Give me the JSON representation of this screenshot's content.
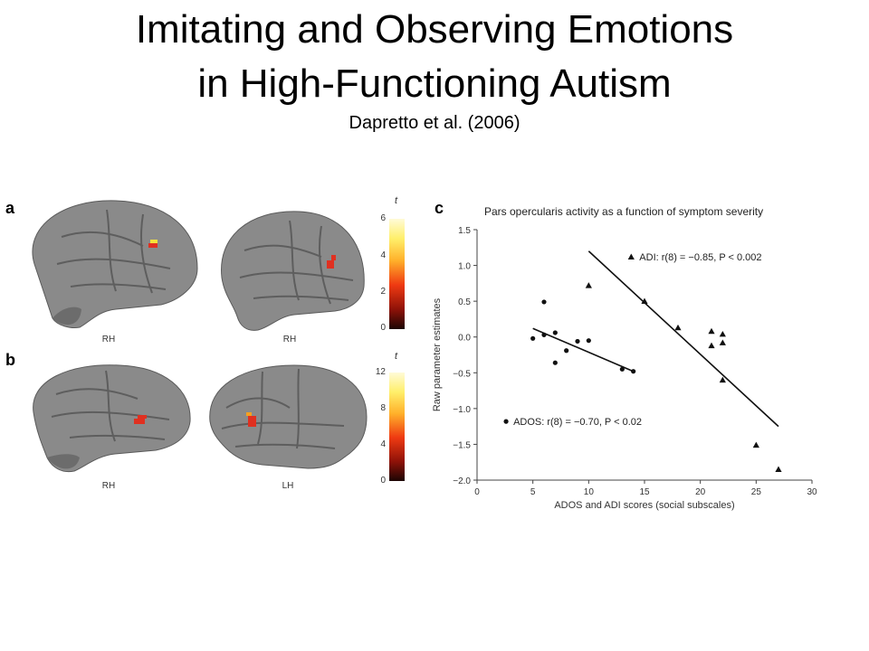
{
  "slide": {
    "title_line1": "Imitating and Observing Emotions",
    "title_line2": "in High-Functioning Autism",
    "subtitle": "Dapretto et al. (2006)"
  },
  "panel_a": {
    "letter": "a",
    "brain_labels": [
      "RH",
      "RH"
    ],
    "colorbar_label": "t",
    "colorbar_ticks": [
      "6",
      "4",
      "2",
      "0"
    ]
  },
  "panel_b": {
    "letter": "b",
    "brain_labels": [
      "RH",
      "LH"
    ],
    "colorbar_label": "t",
    "colorbar_ticks": [
      "12",
      "8",
      "4",
      "0"
    ]
  },
  "panel_c": {
    "letter": "c"
  },
  "colors": {
    "brain_gray": "#8a8a8a",
    "activation_red": "#e03020",
    "activation_yellow": "#f5e23a"
  },
  "chart_data": {
    "type": "scatter",
    "title": "Pars opercularis activity as a function of symptom severity",
    "xlabel": "ADOS and ADI scores (social subscales)",
    "ylabel": "Raw parameter estimates",
    "xlim": [
      0,
      30
    ],
    "ylim": [
      -2.0,
      1.5
    ],
    "xticks": [
      "0",
      "5",
      "10",
      "15",
      "20",
      "25",
      "30"
    ],
    "yticks": [
      "1.5",
      "1.0",
      "0.5",
      "0.0",
      "−0.5",
      "−1.0",
      "−1.5",
      "−2.0"
    ],
    "grid": false,
    "series": [
      {
        "name": "ADOS",
        "marker": "circle",
        "annotation": "ADOS: r(8) = −0.70, P < 0.02",
        "points": [
          [
            5,
            -0.02
          ],
          [
            6,
            0.49
          ],
          [
            6,
            0.03
          ],
          [
            7,
            0.06
          ],
          [
            7,
            -0.36
          ],
          [
            8,
            -0.19
          ],
          [
            9,
            -0.06
          ],
          [
            10,
            -0.05
          ],
          [
            13,
            -0.45
          ],
          [
            14,
            -0.48
          ]
        ],
        "fit": [
          [
            5,
            0.12
          ],
          [
            14,
            -0.48
          ]
        ]
      },
      {
        "name": "ADI",
        "marker": "triangle",
        "annotation": "ADI: r(8) = −0.85, P < 0.002",
        "points": [
          [
            10,
            0.72
          ],
          [
            15,
            0.5
          ],
          [
            18,
            0.13
          ],
          [
            21,
            0.08
          ],
          [
            21,
            -0.12
          ],
          [
            22,
            0.04
          ],
          [
            22,
            -0.08
          ],
          [
            22,
            -0.6
          ],
          [
            25,
            -1.51
          ],
          [
            27,
            -1.85
          ]
        ],
        "fit": [
          [
            10,
            1.2
          ],
          [
            27,
            -1.25
          ]
        ]
      }
    ]
  }
}
